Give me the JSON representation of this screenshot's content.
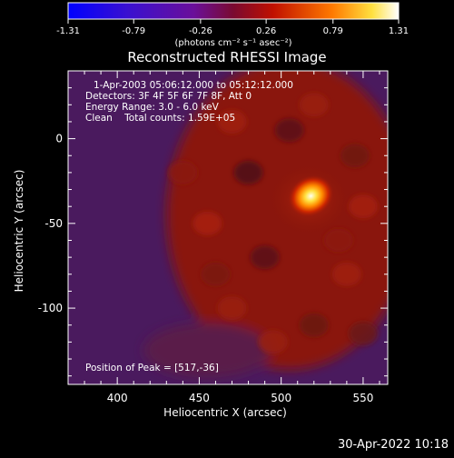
{
  "chart_data": {
    "type": "heatmap",
    "title": "Reconstructed RHESSI Image",
    "xlabel": "Heliocentric X (arcsec)",
    "ylabel": "Heliocentric Y (arcsec)",
    "xlim": [
      370,
      565
    ],
    "ylim": [
      -145,
      40
    ],
    "x_ticks": [
      400,
      450,
      500,
      550
    ],
    "y_ticks": [
      0,
      -50,
      -100
    ],
    "colorbar": {
      "min": -1.31,
      "max": 1.31,
      "tick_labels": [
        "-1.31",
        "-0.79",
        "-0.26",
        "0.26",
        "0.79",
        "1.31"
      ],
      "unit_label": "(photons cm⁻² s⁻¹ asec⁻²)",
      "colormap": [
        "#0000ff",
        "#5010c0",
        "#800040",
        "#c01000",
        "#ff8000",
        "#ffff40",
        "#ffffff"
      ]
    },
    "annotations": [
      "1-Apr-2003 05:06:12.000 to 05:12:12.000",
      "Detectors: 3F 4F 5F 6F 7F 8F, Att 0",
      "Energy Range: 3.0 - 6.0 keV",
      "Clean    Total counts: 1.59E+05"
    ],
    "peak_label": "Position of Peak = [517,-36]",
    "peak": [
      517,
      -36
    ],
    "background_color": "#4a1a5e",
    "emission_color": "#8a1808"
  },
  "footer": {
    "timestamp": "30-Apr-2022 10:18"
  }
}
